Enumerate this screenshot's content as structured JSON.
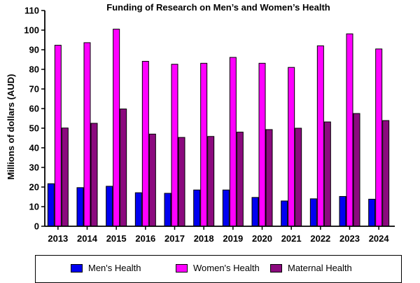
{
  "chart_data": {
    "type": "bar",
    "title": "Funding of Research on Men’s and Women’s Health",
    "ylabel": "Millions of dollars (AUD)",
    "xlabel": "",
    "categories": [
      "2013",
      "2014",
      "2015",
      "2016",
      "2017",
      "2018",
      "2019",
      "2020",
      "2021",
      "2022",
      "2023",
      "2024"
    ],
    "ylim": [
      0,
      110
    ],
    "yticks": [
      0,
      10,
      20,
      30,
      40,
      50,
      60,
      70,
      80,
      90,
      100,
      110
    ],
    "grid": false,
    "legend_position": "bottom",
    "series": [
      {
        "name": "Men's Health",
        "color": "#0000f0",
        "values": [
          21.7,
          19.7,
          20.4,
          17.1,
          16.8,
          18.5,
          18.5,
          14.7,
          12.9,
          14.0,
          15.2,
          13.8
        ]
      },
      {
        "name": "Women's Health",
        "color": "#ff00ff",
        "values": [
          92.3,
          93.6,
          100.5,
          84.1,
          82.6,
          83.1,
          86.1,
          83.1,
          81.0,
          92.0,
          98.1,
          90.4
        ]
      },
      {
        "name": "Maternal Health",
        "color": "#8b0a7e",
        "values": [
          50.1,
          52.5,
          59.8,
          47.0,
          45.3,
          45.8,
          48.0,
          49.3,
          50.0,
          53.2,
          57.5,
          53.9
        ]
      }
    ]
  }
}
